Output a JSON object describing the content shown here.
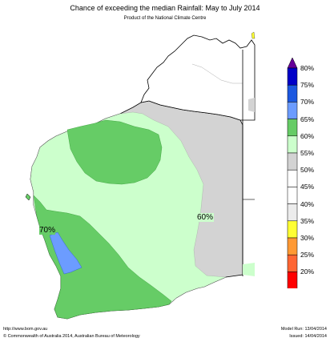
{
  "header": {
    "title": "Chance of exceeding the median Rainfall: May to July 2014",
    "subtitle": "Product of the National Climate Centre"
  },
  "map": {
    "region_labels": [
      {
        "text": "70%",
        "key": "p70"
      },
      {
        "text": "60%",
        "key": "p60"
      }
    ]
  },
  "legend": {
    "bins": [
      {
        "label": "80%",
        "color": "#0000c8"
      },
      {
        "label": "75%",
        "color": "#1c58e0"
      },
      {
        "label": "70%",
        "color": "#6c9cff"
      },
      {
        "label": "65%",
        "color": "#66cc66"
      },
      {
        "label": "60%",
        "color": "#ccffcc"
      },
      {
        "label": "55%",
        "color": "#d3d3d3"
      },
      {
        "label": "50%",
        "color": "#ffffff"
      },
      {
        "label": "45%",
        "color": "#ffffff"
      },
      {
        "label": "40%",
        "color": "#ececec"
      },
      {
        "label": "35%",
        "color": "#ffff33"
      },
      {
        "label": "30%",
        "color": "#ff9933"
      },
      {
        "label": "25%",
        "color": "#ff6633"
      },
      {
        "label": "20%",
        "color": "#ff0000"
      }
    ],
    "top_arrow_color": "#660099",
    "bottom_arrow_color": "#996600"
  },
  "footer": {
    "url": "http://www.bom.gov.au",
    "copyright": "©  Commonwealth of Australia 2014, Australian Bureau of Meteorology",
    "model_run": "Model Run: 13/04/2014",
    "issued": "Issued: 14/04/2014"
  }
}
